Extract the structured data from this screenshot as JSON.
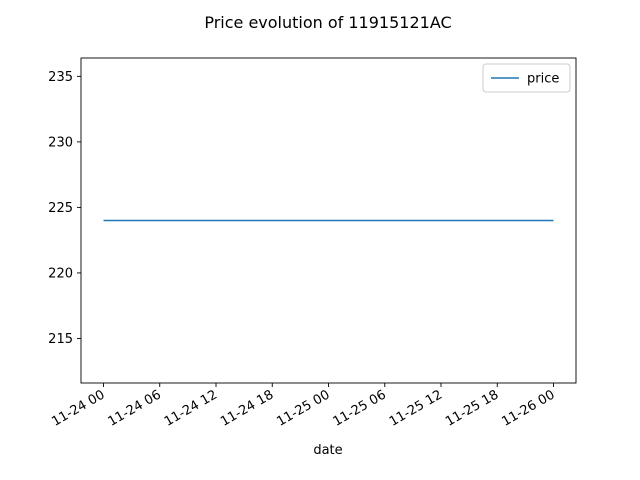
{
  "chart_data": {
    "type": "line",
    "title": "Price evolution of 11915121AC",
    "xlabel": "date",
    "ylabel": "",
    "x": [
      "2023-11-24T00:00",
      "2023-11-26T00:00"
    ],
    "series": [
      {
        "name": "price",
        "color": "#1f77b4",
        "values": [
          224,
          224
        ]
      }
    ],
    "xticks": [
      "11-24 00",
      "11-24 06",
      "11-24 12",
      "11-24 18",
      "11-25 00",
      "11-25 06",
      "11-25 12",
      "11-25 18",
      "11-26 00"
    ],
    "yticks": [
      215,
      220,
      225,
      230,
      235
    ],
    "xlim": [
      "2023-11-23T21:36",
      "2023-11-26T02:24"
    ],
    "ylim": [
      211.6,
      236.4
    ],
    "grid": false,
    "legend": "top-right"
  }
}
